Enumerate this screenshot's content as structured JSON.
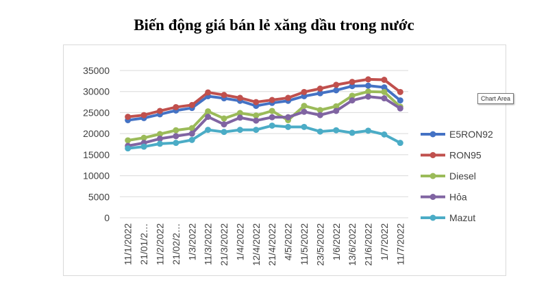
{
  "title": "Biến động giá bán lẻ xăng dầu trong nước",
  "tooltip": "Chart Area",
  "chart_data": {
    "type": "line",
    "title": "Biến động giá bán lẻ xăng dầu trong nước",
    "xlabel": "",
    "ylabel": "",
    "ylim": [
      0,
      35000
    ],
    "yticks": [
      0,
      5000,
      10000,
      15000,
      20000,
      25000,
      30000,
      35000
    ],
    "grid": true,
    "legend_position": "right",
    "categories": [
      "11/1/2022",
      "21/01/2…",
      "11/2/2022",
      "21/02/2…",
      "1/3/2022",
      "11/3/2022",
      "21/3/2022",
      "1/4/2022",
      "12/4/2022",
      "21/4/2022",
      "4/5/2022",
      "11/5/2022",
      "23/5/2022",
      "1/6/2022",
      "13/6/2022",
      "21/6/2022",
      "1/7/2022",
      "11/7/2022"
    ],
    "series": [
      {
        "name": "E5RON92",
        "color": "#4472c4",
        "values": [
          23200,
          23700,
          24600,
          25500,
          26100,
          28900,
          28400,
          27800,
          26600,
          27300,
          27800,
          28900,
          29600,
          30300,
          31300,
          31400,
          31000,
          27900
        ]
      },
      {
        "name": "RON95",
        "color": "#c0504d",
        "values": [
          24000,
          24400,
          25400,
          26300,
          26800,
          29800,
          29200,
          28500,
          27500,
          28000,
          28500,
          29900,
          30700,
          31600,
          32300,
          32900,
          32800,
          29900
        ]
      },
      {
        "name": "Diesel",
        "color": "#9bbb59",
        "values": [
          18400,
          19000,
          19900,
          20800,
          21300,
          25300,
          23600,
          24900,
          24300,
          25400,
          23200,
          26600,
          25600,
          26500,
          29000,
          30000,
          29900,
          26400
        ]
      },
      {
        "name": "Hỏa",
        "color": "#8064a2",
        "values": [
          17100,
          17800,
          18800,
          19400,
          20000,
          24000,
          22200,
          23800,
          23100,
          23900,
          23900,
          25200,
          24400,
          25400,
          27900,
          28800,
          28400,
          26000
        ]
      },
      {
        "name": "Mazut",
        "color": "#4bacc6",
        "values": [
          16500,
          16900,
          17600,
          17800,
          18500,
          20900,
          20400,
          20900,
          20900,
          21900,
          21600,
          21600,
          20500,
          20800,
          20200,
          20700,
          19800,
          17800
        ]
      }
    ]
  }
}
